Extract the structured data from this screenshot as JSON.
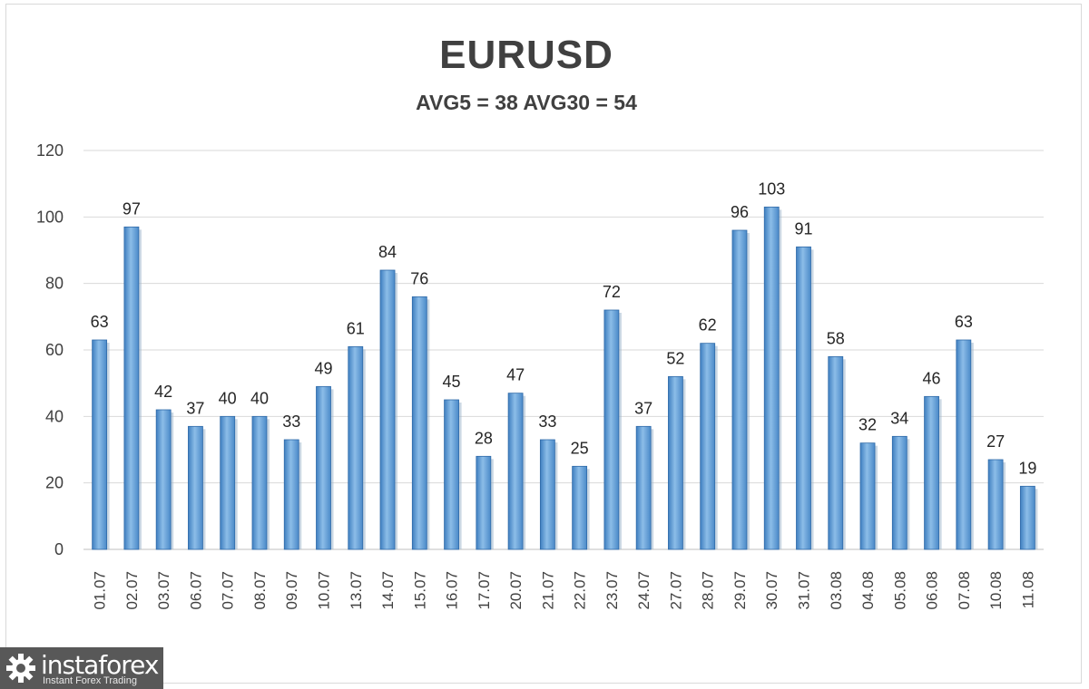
{
  "chart_data": {
    "type": "bar",
    "title": "EURUSD",
    "subtitle": "AVG5 = 38 AVG30 = 54",
    "categories": [
      "01.07",
      "02.07",
      "03.07",
      "06.07",
      "07.07",
      "08.07",
      "09.07",
      "10.07",
      "13.07",
      "14.07",
      "15.07",
      "16.07",
      "17.07",
      "20.07",
      "21.07",
      "22.07",
      "23.07",
      "24.07",
      "27.07",
      "28.07",
      "29.07",
      "30.07",
      "31.07",
      "03.08",
      "04.08",
      "05.08",
      "06.08",
      "07.08",
      "10.08",
      "11.08"
    ],
    "values": [
      63,
      97,
      42,
      37,
      40,
      40,
      33,
      49,
      61,
      84,
      76,
      45,
      28,
      47,
      33,
      25,
      72,
      37,
      52,
      62,
      96,
      103,
      91,
      58,
      32,
      34,
      46,
      63,
      27,
      19
    ],
    "ylim": [
      0,
      120
    ],
    "yticks": [
      0,
      20,
      40,
      60,
      80,
      100,
      120
    ],
    "grid": true,
    "bar_color": "#5b9bd5",
    "data_labels": true
  },
  "watermark": {
    "name": "instaforex",
    "tagline": "Instant Forex Trading"
  }
}
